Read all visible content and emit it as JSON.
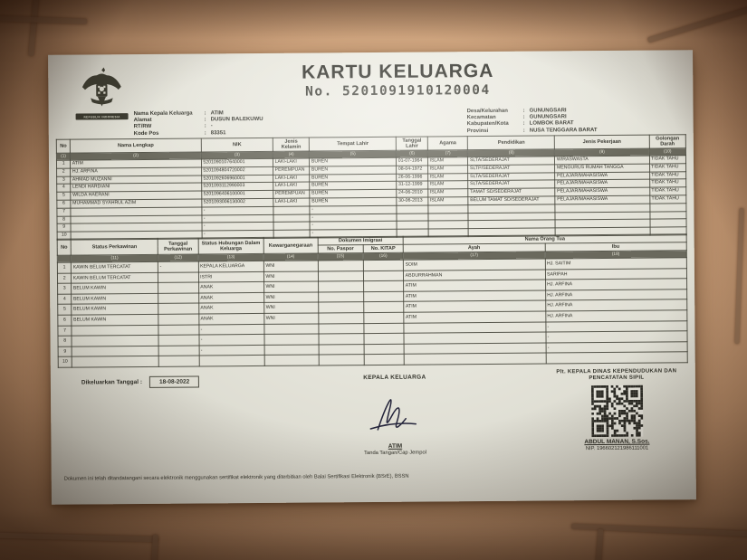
{
  "punct": {
    "colon": ":"
  },
  "document": {
    "emblem_caption": "REPUBLIK INDONESIA",
    "title": "KARTU KELUARGA",
    "number_label": "No.",
    "number": "5201091910120004",
    "issued_label": "Dikeluarkan Tanggal",
    "issued_date": "18-08-2022",
    "disclaimer": "Dokumen ini telah ditandatangani secara elektronik menggunakan sertifikat elektronik yang diterbitkan oleh Balai Sertifikasi Elektronik (BSrE), BSSN"
  },
  "header_left": [
    {
      "label": "Nama Kepala Keluarga",
      "value": "ATIM"
    },
    {
      "label": "Alamat",
      "value": "DUSUN BALEKUWU"
    },
    {
      "label": "RT/RW",
      "value": "-"
    },
    {
      "label": "Kode Pos",
      "value": "83351"
    }
  ],
  "header_right": [
    {
      "label": "Desa/Kelurahan",
      "value": "GUNUNGSARI"
    },
    {
      "label": "Kecamatan",
      "value": "GUNUNGSARI"
    },
    {
      "label": "Kabupaten/Kota",
      "value": "LOMBOK BARAT"
    },
    {
      "label": "Provinsi",
      "value": "NUSA TENGGARA BARAT"
    }
  ],
  "table1": {
    "headers": [
      "No",
      "Nama Lengkap",
      "NIK",
      "Jenis Kelamin",
      "Tempat Lahir",
      "Tanggal Lahir",
      "Agama",
      "Pendidikan",
      "Jenis Pekerjaan",
      "Golongan Darah"
    ],
    "col_numbers": [
      "(1)",
      "(2)",
      "(3)",
      "(4)",
      "(5)",
      "(6)",
      "(7)",
      "(8)",
      "(9)",
      "(10)"
    ],
    "rows": [
      [
        "1",
        "ATIM",
        "5201090107640001",
        "LAKI-LAKI",
        "BUREN",
        "01-07-1964",
        "ISLAM",
        "SLTA/SEDERAJAT",
        "WIRASWASTA",
        "TIDAK TAHU"
      ],
      [
        "2",
        "HJ. ARFINA",
        "5201094804720002",
        "PEREMPUAN",
        "BUREN",
        "08-04-1972",
        "ISLAM",
        "SLTP/SEDERAJAT",
        "MENGURUS RUMAH TANGGA",
        "TIDAK TAHU"
      ],
      [
        "3",
        "AHMAD MUZANNI",
        "5201092606960001",
        "LAKI-LAKI",
        "BUREN",
        "26-06-1996",
        "ISLAM",
        "SLTA/SEDERAJAT",
        "PELAJAR/MAHASISWA",
        "TIDAK TAHU"
      ],
      [
        "4",
        "LENDI HARDIANI",
        "5201093112990003",
        "LAKI-LAKI",
        "BUREN",
        "31-12-1999",
        "ISLAM",
        "SLTA/SEDERAJAT",
        "PELAJAR/MAHASISWA",
        "TIDAK TAHU"
      ],
      [
        "5",
        "WILDA HAERANI",
        "5201096406100001",
        "PEREMPUAN",
        "BUREN",
        "24-06-2010",
        "ISLAM",
        "TAMAT SD/SEDERAJAT",
        "PELAJAR/MAHASISWA",
        "TIDAK TAHU"
      ],
      [
        "6",
        "MUHAMMAD SYAHRUL AZIM",
        "5201093006130002",
        "LAKI-LAKI",
        "BUREN",
        "30-06-2013",
        "ISLAM",
        "BELUM TAMAT SD/SEDERAJAT",
        "PELAJAR/MAHASISWA",
        "TIDAK TAHU"
      ],
      [
        "7",
        "",
        "-",
        "",
        "-",
        "",
        "",
        "",
        "",
        ""
      ],
      [
        "8",
        "",
        "-",
        "",
        "-",
        "",
        "",
        "",
        "",
        ""
      ],
      [
        "9",
        "",
        "-",
        "",
        "-",
        "",
        "",
        "",
        "",
        ""
      ],
      [
        "10",
        "",
        "-",
        "",
        "-",
        "",
        "",
        "",
        "",
        ""
      ]
    ]
  },
  "table2": {
    "headers": {
      "no": "No",
      "status_perkawinan": "Status Perkawinan",
      "tanggal_perkawinan": "Tanggal Perkawinan",
      "status_hubungan": "Status Hubungan Dalam Keluarga",
      "kewarganegaraan": "Kewarganegaraan",
      "dokumen_imigrasi": "Dokumen Imigrasi",
      "no_paspor": "No. Paspor",
      "no_kitap": "No. KITAP",
      "nama_orang_tua": "Nama Orang Tua",
      "ayah": "Ayah",
      "ibu": "Ibu"
    },
    "col_numbers": [
      "",
      "(11)",
      "(12)",
      "(13)",
      "(14)",
      "(15)",
      "(16)",
      "(17)",
      "(18)"
    ],
    "rows": [
      [
        "1",
        "KAWIN BELUM TERCATAT",
        "-",
        "KEPALA KELUARGA",
        "WNI",
        "",
        "",
        "SOIM",
        "HJ. SAITIM"
      ],
      [
        "2",
        "KAWIN BELUM TERCATAT",
        "",
        "ISTRI",
        "WNI",
        "",
        "",
        "ABDURRAHMAN",
        "SARIPAH"
      ],
      [
        "3",
        "BELUM KAWIN",
        "",
        "ANAK",
        "WNI",
        "",
        "",
        "ATIM",
        "HJ. ARFINA"
      ],
      [
        "4",
        "BELUM KAWIN",
        "",
        "ANAK",
        "WNI",
        "",
        "",
        "ATIM",
        "HJ. ARFINA"
      ],
      [
        "5",
        "BELUM KAWIN",
        "",
        "ANAK",
        "WNI",
        "",
        "",
        "ATIM",
        "HJ. ARFINA"
      ],
      [
        "6",
        "BELUM KAWIN",
        "",
        "ANAK",
        "WNI",
        "",
        "",
        "ATIM",
        "HJ. ARFINA"
      ],
      [
        "7",
        "",
        "",
        "-",
        "",
        "",
        "",
        "",
        "-"
      ],
      [
        "8",
        "",
        "",
        "-",
        "",
        "",
        "",
        "",
        "-"
      ],
      [
        "9",
        "",
        "",
        "-",
        "",
        "",
        "",
        "",
        "-"
      ],
      [
        "10",
        "",
        "",
        "",
        "",
        "",
        "",
        "",
        ""
      ]
    ]
  },
  "sign_left": {
    "title": "KEPALA KELUARGA",
    "name": "ATIM",
    "caption": "Tanda Tangan/Cap Jempol"
  },
  "sign_right": {
    "title_line1": "Plt. KEPALA DINAS KEPENDUDUKAN DAN",
    "title_line2": "PENCATATAN SIPIL",
    "name": "ABDUL MANAN, S.Sos.",
    "nip": "NIP. 196602121986111001"
  },
  "colors": {
    "paper": "#e5e4da",
    "ink": "#33332b",
    "table_band": "#6a695d",
    "tile": "#cda27c",
    "grout": "#8d6c51"
  }
}
